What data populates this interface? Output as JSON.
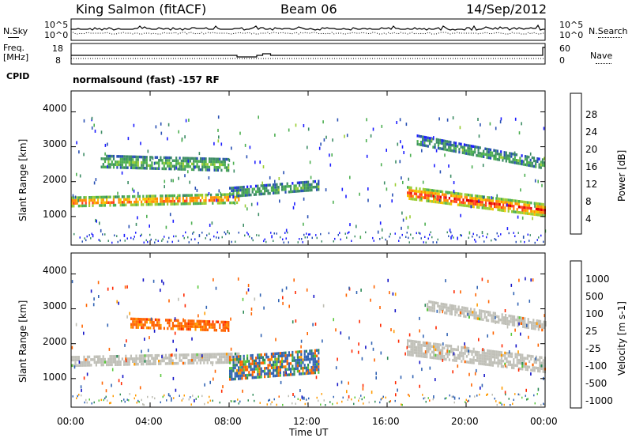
{
  "header": {
    "radar": "King Salmon (fitACF)",
    "beam": "Beam 06",
    "date": "14/Sep/2012"
  },
  "aux_panels": {
    "nsky_label": "N.Sky",
    "nsearch_label": "N.Search",
    "freq_label_top": "Freq.",
    "freq_label_unit": "[MHz]",
    "nave_label": "Nave",
    "cpid_label": "CPID",
    "noise_ticks_left": [
      "10^5",
      "10^0"
    ],
    "noise_ticks_right": [
      "10^5",
      "10^0"
    ],
    "freq_ticks": [
      "18",
      "8"
    ],
    "nave_ticks": [
      "60",
      "0"
    ],
    "cpid_text": "normalsound (fast) -157 RF"
  },
  "colors": {
    "power_scale": [
      "#1c1cff",
      "#2850b4",
      "#3c8c64",
      "#4caf50",
      "#9acd32",
      "#f4c400",
      "#ff8c00",
      "#ff3c1e",
      "#e10000"
    ],
    "velocity_scale": [
      "#1414c8",
      "#3264b4",
      "#2e8b57",
      "#5ac83c",
      "#bebeb4",
      "#ff9b00",
      "#ff6400",
      "#ff2800",
      "#dc0000"
    ],
    "ground_scatter": "#c0c0b8"
  },
  "chart_data": [
    {
      "type": "heatmap",
      "title": "",
      "xlabel": "Time UT",
      "ylabel": "Slant Range [km]",
      "x_ticks": [
        "00:00",
        "04:00",
        "08:00",
        "12:00",
        "16:00",
        "20:00",
        "00:00"
      ],
      "y_ticks": [
        "1000",
        "2000",
        "3000",
        "4000"
      ],
      "xlim_hours": [
        0,
        24
      ],
      "ylim_km": [
        180,
        4600
      ],
      "colorbar": {
        "label": "Power [dB]",
        "ticks": [
          "4",
          "8",
          "12",
          "16",
          "20",
          "24",
          "28"
        ],
        "range": [
          0,
          30
        ]
      },
      "features": [
        {
          "name": "main-band-morning",
          "t_start": 0.0,
          "t_end": 8.5,
          "r_start": 1450,
          "r_end": 1550,
          "width_km": 250,
          "power_dB": 22
        },
        {
          "name": "upper-band-morning",
          "t_start": 1.5,
          "t_end": 8.0,
          "r_start": 2600,
          "r_end": 2500,
          "width_km": 350,
          "power_dB": 12
        },
        {
          "name": "post-8ut-band",
          "t_start": 8.0,
          "t_end": 12.5,
          "r_start": 1700,
          "r_end": 1900,
          "width_km": 300,
          "power_dB": 10
        },
        {
          "name": "evening-main-band",
          "t_start": 17.0,
          "t_end": 24.0,
          "r_start": 1700,
          "r_end": 1200,
          "width_km": 350,
          "power_dB": 24
        },
        {
          "name": "evening-upper-band",
          "t_start": 17.5,
          "t_end": 24.0,
          "r_start": 3200,
          "r_end": 2500,
          "width_km": 300,
          "power_dB": 10
        }
      ]
    },
    {
      "type": "heatmap",
      "title": "",
      "xlabel": "Time UT",
      "ylabel": "Slant Range [km]",
      "x_ticks": [
        "00:00",
        "04:00",
        "08:00",
        "12:00",
        "16:00",
        "20:00",
        "00:00"
      ],
      "y_ticks": [
        "1000",
        "2000",
        "3000",
        "4000"
      ],
      "xlim_hours": [
        0,
        24
      ],
      "ylim_km": [
        180,
        4600
      ],
      "colorbar": {
        "label": "Velocity [m s-1]",
        "ticks": [
          "1000",
          "500",
          "100",
          "25",
          "-25",
          "-100",
          "-500",
          "-1000"
        ],
        "range": [
          -1000,
          1000
        ]
      },
      "features": [
        {
          "name": "ground-scatter-morning",
          "t_start": 0.0,
          "t_end": 8.5,
          "r_start": 1500,
          "r_end": 1600,
          "width_km": 300,
          "velocity": 0
        },
        {
          "name": "upper-mixed-morning",
          "t_start": 3.0,
          "t_end": 8.0,
          "r_start": 2600,
          "r_end": 2500,
          "width_km": 300,
          "velocity": -150
        },
        {
          "name": "green-ionospheric-band",
          "t_start": 8.0,
          "t_end": 12.5,
          "r_start": 1300,
          "r_end": 1500,
          "width_km": 700,
          "velocity": 150
        },
        {
          "name": "ground-scatter-evening",
          "t_start": 17.0,
          "t_end": 24.0,
          "r_start": 1900,
          "r_end": 1400,
          "width_km": 450,
          "velocity": 0
        },
        {
          "name": "ground-scatter-upper-evening",
          "t_start": 18.0,
          "t_end": 24.0,
          "r_start": 3100,
          "r_end": 2500,
          "width_km": 300,
          "velocity": 0
        }
      ]
    }
  ]
}
